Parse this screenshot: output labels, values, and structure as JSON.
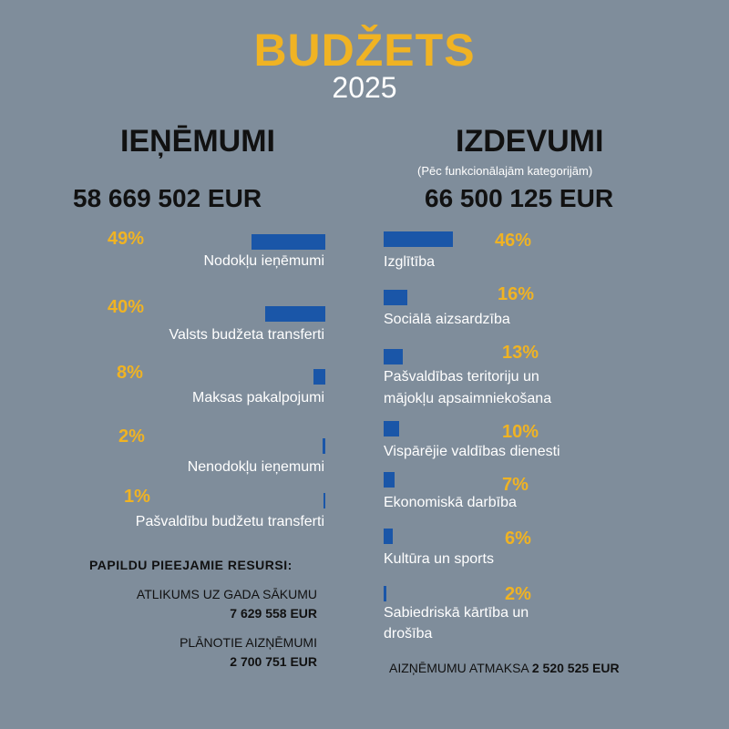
{
  "header": {
    "title": "BUDŽETS",
    "year": "2025"
  },
  "revenue": {
    "heading": "IEŅĒMUMI",
    "total": "58 669 502 EUR",
    "items": [
      {
        "percent": "49%",
        "value": 49,
        "label": "Nodokļu ieņēmumi"
      },
      {
        "percent": "40%",
        "value": 40,
        "label": "Valsts budžeta transferti"
      },
      {
        "percent": "8%",
        "value": 8,
        "label": "Maksas pakalpojumi"
      },
      {
        "percent": "2%",
        "value": 2,
        "label": "Nenodokļu ieņemumi"
      },
      {
        "percent": "1%",
        "value": 1,
        "label": "Pašvaldību budžetu transferti"
      }
    ],
    "extra": {
      "heading": "PAPILDU PIEEJAMIE RESURSI:",
      "balance_label": "ATLIKUMS UZ GADA SĀKUMU",
      "balance_value": "7 629 558 EUR",
      "loans_label": "PLĀNOTIE AIZŅĒMUMI",
      "loans_value": "2 700 751 EUR"
    }
  },
  "expenses": {
    "heading": "IZDEVUMI",
    "subheading": "(Pēc funkcionālajām kategorijām)",
    "total": "66 500 125 EUR",
    "items": [
      {
        "percent": "46%",
        "value": 46,
        "label_line1": "Izglītība",
        "label_line2": ""
      },
      {
        "percent": "16%",
        "value": 16,
        "label_line1": "Sociālā aizsardzība",
        "label_line2": ""
      },
      {
        "percent": "13%",
        "value": 13,
        "label_line1": "Pašvaldības teritoriju un",
        "label_line2": "mājokļu apsaimniekošana"
      },
      {
        "percent": "10%",
        "value": 10,
        "label_line1": "Vispārējie valdības dienesti",
        "label_line2": ""
      },
      {
        "percent": "7%",
        "value": 7,
        "label_line1": "Ekonomiskā darbība",
        "label_line2": ""
      },
      {
        "percent": "6%",
        "value": 6,
        "label_line1": "Kultūra un sports",
        "label_line2": ""
      },
      {
        "percent": "2%",
        "value": 2,
        "label_line1": "Sabiedriskā kārtība un",
        "label_line2": "drošība"
      }
    ],
    "repayment_label": "AIZŅĒMUMU ATMAKSA",
    "repayment_value": "2 520 525 EUR"
  },
  "colors": {
    "background": "#7f8d9b",
    "accent": "#f0b323",
    "bar": "#1a56a8",
    "dark_text": "#111111"
  }
}
